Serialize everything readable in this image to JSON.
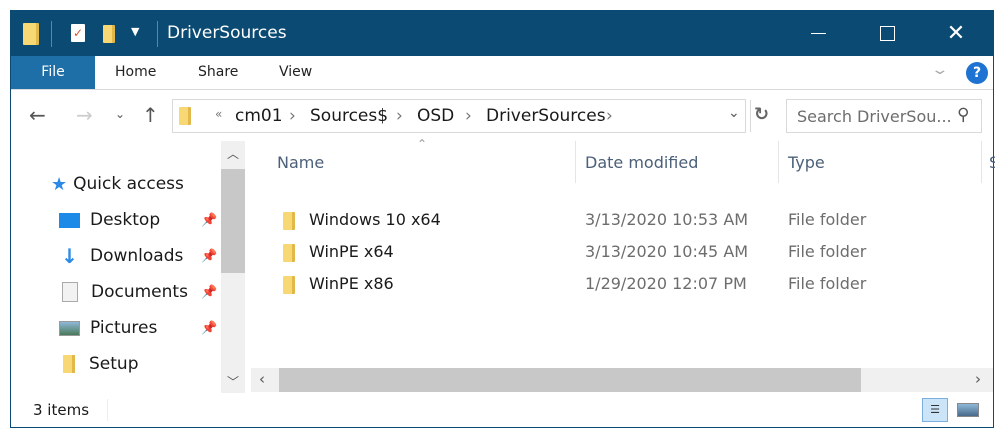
{
  "window": {
    "title": "DriverSources",
    "minimize_icon": "minimize-icon",
    "maximize_icon": "maximize-icon",
    "close_icon": "close-icon"
  },
  "ribbon": {
    "tabs": [
      "File",
      "Home",
      "Share",
      "View"
    ],
    "help": "?"
  },
  "address": {
    "overflow": "«",
    "crumbs": [
      "cm01",
      "Sources$",
      "OSD",
      "DriverSources"
    ]
  },
  "search": {
    "placeholder": "Search DriverSou..."
  },
  "sidebar": {
    "items": [
      {
        "label": "Quick access",
        "icon": "star-icon"
      },
      {
        "label": "Desktop",
        "icon": "desktop-icon",
        "pinned": true
      },
      {
        "label": "Downloads",
        "icon": "download-icon",
        "pinned": true
      },
      {
        "label": "Documents",
        "icon": "document-icon",
        "pinned": true
      },
      {
        "label": "Pictures",
        "icon": "pictures-icon",
        "pinned": true
      },
      {
        "label": "Setup",
        "icon": "folder-icon"
      }
    ]
  },
  "columns": [
    "Name",
    "Date modified",
    "Type",
    "S"
  ],
  "files": [
    {
      "name": "Windows 10 x64",
      "date": "3/13/2020 10:53 AM",
      "type": "File folder"
    },
    {
      "name": "WinPE x64",
      "date": "3/13/2020 10:45 AM",
      "type": "File folder"
    },
    {
      "name": "WinPE x86",
      "date": "1/29/2020 12:07 PM",
      "type": "File folder"
    }
  ],
  "status": {
    "count": "3 items"
  },
  "colors": {
    "titlebar": "#0b4a72",
    "file_tab": "#1e6ea7",
    "folder": "#f8d775"
  }
}
